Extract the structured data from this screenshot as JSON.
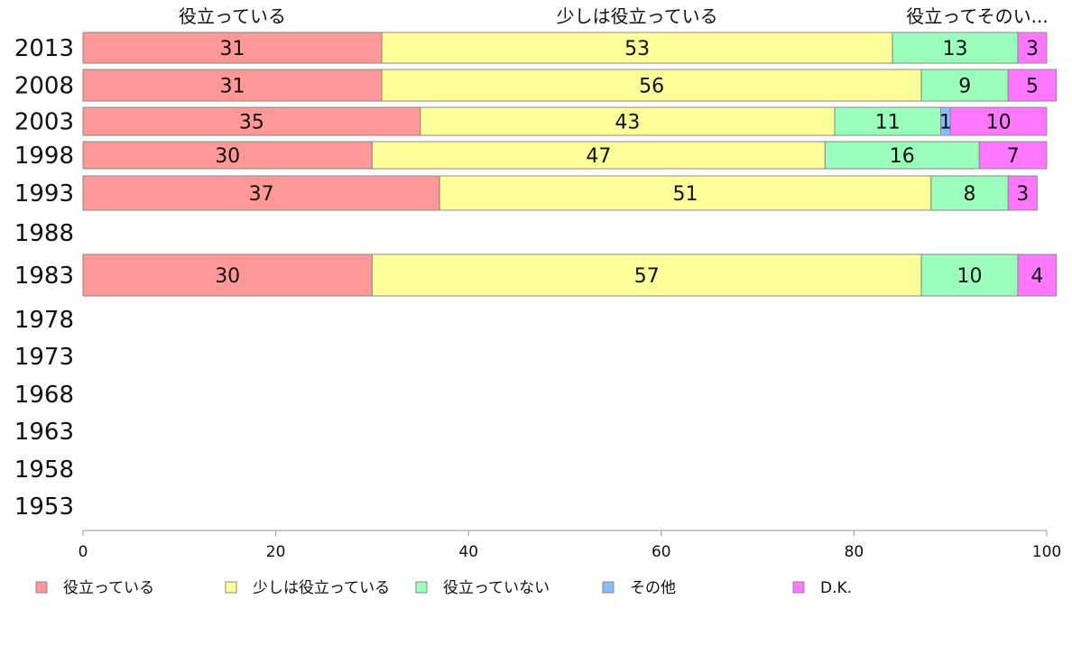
{
  "chart_data": {
    "type": "bar",
    "orientation": "horizontal",
    "stacked": true,
    "categories": [
      "2013",
      "2008",
      "2003",
      "1998",
      "1993",
      "1988",
      "1983",
      "1978",
      "1973",
      "1968",
      "1963",
      "1958",
      "1953"
    ],
    "series": [
      {
        "name": "役立っている",
        "color": "#ff9896",
        "values": [
          31,
          31,
          35,
          30,
          37,
          null,
          30,
          null,
          null,
          null,
          null,
          null,
          null
        ]
      },
      {
        "name": "少しは役立っている",
        "color": "#ffff99",
        "values": [
          53,
          56,
          43,
          47,
          51,
          null,
          57,
          null,
          null,
          null,
          null,
          null,
          null
        ]
      },
      {
        "name": "役立っていない",
        "color": "#99ffbb",
        "values": [
          13,
          9,
          11,
          16,
          8,
          null,
          10,
          null,
          null,
          null,
          null,
          null,
          null
        ]
      },
      {
        "name": "その他",
        "color": "#88bbff",
        "values": [
          0,
          0,
          1,
          0,
          0,
          null,
          0,
          null,
          null,
          null,
          null,
          null,
          null
        ]
      },
      {
        "name": "D.K.",
        "color": "#ff77ff",
        "values": [
          3,
          5,
          10,
          7,
          3,
          null,
          4,
          null,
          null,
          null,
          null,
          null,
          null
        ]
      }
    ],
    "top_labels": [
      "役立っている",
      "少しは役立っている",
      "役立ってそのい..."
    ],
    "xlim": [
      0,
      100
    ],
    "xticks": [
      "0",
      "20",
      "40",
      "60",
      "80",
      "100"
    ],
    "legend_position": "bottom",
    "grid": false
  }
}
